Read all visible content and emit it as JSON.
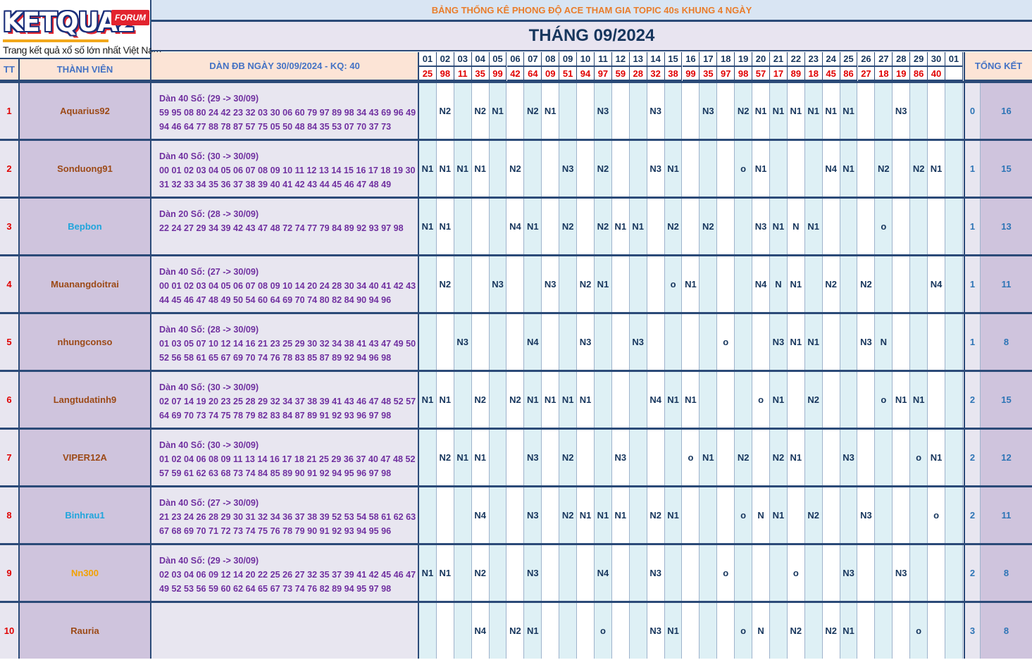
{
  "logo": {
    "brand": "KETQUA2",
    "badge": "FORUM",
    "tagline": "Trang kết quả xổ số lớn nhất Việt Nam"
  },
  "header": {
    "title": "BẢNG THỐNG KÊ PHONG ĐỘ ACE THAM GIA TOPIC 40s KHUNG 4 NGÀY",
    "month": "THÁNG 09/2024",
    "col_tt": "TT",
    "col_member": "THÀNH VIÊN",
    "col_dan": "DÀN ĐB NGÀY 30/09/2024 - KQ: 40",
    "col_summary": "TỔNG KẾT"
  },
  "days": [
    "01",
    "02",
    "03",
    "04",
    "05",
    "06",
    "07",
    "08",
    "09",
    "10",
    "11",
    "12",
    "13",
    "14",
    "15",
    "16",
    "17",
    "18",
    "19",
    "20",
    "21",
    "22",
    "23",
    "24",
    "25",
    "26",
    "27",
    "28",
    "29",
    "30",
    "01"
  ],
  "results": [
    "25",
    "98",
    "11",
    "35",
    "99",
    "42",
    "64",
    "09",
    "51",
    "94",
    "97",
    "59",
    "28",
    "32",
    "38",
    "99",
    "35",
    "97",
    "98",
    "57",
    "17",
    "89",
    "18",
    "45",
    "86",
    "27",
    "18",
    "19",
    "86",
    "40",
    ""
  ],
  "colors": {
    "name_brown": "#9c4a17",
    "name_blue": "#1fa5dc",
    "name_orange": "#f2a200",
    "row_bg": "#e8e6f0",
    "day_bg": "#def0f5",
    "accent_border": "#2b4a78"
  },
  "members": [
    {
      "tt": "1",
      "name": "Aquarius92",
      "name_color": "brown",
      "dan": [
        "Dàn 40 Số: (29 -> 30/09)",
        "59 95 08 80 24 42 23 32 03 30 06 60 79 97 89 98 34 43 69 96 49",
        "94 46 64 77 88 78 87 57 75 05 50 48 84 35 53 07 70 37 73"
      ],
      "marks": [
        "",
        "N2",
        "",
        "N2",
        "N1",
        "",
        "N2",
        "N1",
        "",
        "",
        "N3",
        "",
        "",
        "N3",
        "",
        "",
        "N3",
        "",
        "N2",
        "N1",
        "N1",
        "N1",
        "N1",
        "N1",
        "N1",
        "",
        "",
        "N3",
        "",
        "",
        ""
      ],
      "s1": "0",
      "s2": "16"
    },
    {
      "tt": "2",
      "name": "Sonduong91",
      "name_color": "brown",
      "dan": [
        "Dàn 40 Số: (30 -> 30/09)",
        "00 01 02 03 04 05 06 07 08 09 10 11 12 13 14 15 16 17 18 19 30",
        "31 32 33 34 35 36 37 38 39 40 41 42 43 44 45 46 47 48 49"
      ],
      "marks": [
        "N1",
        "N1",
        "N1",
        "N1",
        "",
        "N2",
        "",
        "",
        "N3",
        "",
        "N2",
        "",
        "",
        "N3",
        "N1",
        "",
        "",
        "",
        "o",
        "N1",
        "",
        "",
        "",
        "N4",
        "N1",
        "",
        "N2",
        "",
        "N2",
        "N1",
        ""
      ],
      "s1": "1",
      "s2": "15"
    },
    {
      "tt": "3",
      "name": "Bepbon",
      "name_color": "blue",
      "dan": [
        "Dàn 20 Số: (28 -> 30/09)",
        "22 24 27 29 34 39 42 43 47 48 72 74 77 79 84 89 92 93 97 98",
        ""
      ],
      "marks": [
        "N1",
        "N1",
        "",
        "",
        "",
        "N4",
        "N1",
        "",
        "N2",
        "",
        "N2",
        "N1",
        "N1",
        "",
        "N2",
        "",
        "N2",
        "",
        "",
        "N3",
        "N1",
        "N",
        "N1",
        "",
        "",
        "",
        "o",
        "",
        "",
        "",
        ""
      ],
      "s1": "1",
      "s2": "13"
    },
    {
      "tt": "4",
      "name": "Muanangdoitrai",
      "name_color": "brown",
      "dan": [
        "Dàn 40 Số: (27 -> 30/09)",
        "00 01 02 03 04 05 06 07 08 09 10 14 20 24 28 30 34 40 41 42 43",
        "44 45 46 47 48 49 50 54 60 64 69 70 74 80 82 84 90 94 96"
      ],
      "marks": [
        "",
        "N2",
        "",
        "",
        "N3",
        "",
        "",
        "N3",
        "",
        "N2",
        "N1",
        "",
        "",
        "",
        "o",
        "N1",
        "",
        "",
        "",
        "N4",
        "N",
        "N1",
        "",
        "N2",
        "",
        "N2",
        "",
        "",
        "",
        "N4",
        ""
      ],
      "s1": "1",
      "s2": "11"
    },
    {
      "tt": "5",
      "name": "nhungconso",
      "name_color": "brown",
      "dan": [
        "Dàn 40 Số: (28 -> 30/09)",
        "01 03 05 07 10 12 14 16 21 23 25 29 30 32 34 38 41 43 47 49 50",
        "52 56 58 61 65 67 69 70 74 76 78 83 85 87 89 92 94 96 98"
      ],
      "marks": [
        "",
        "",
        "N3",
        "",
        "",
        "",
        "N4",
        "",
        "",
        "N3",
        "",
        "",
        "N3",
        "",
        "",
        "",
        "",
        "o",
        "",
        "",
        "N3",
        "N1",
        "N1",
        "",
        "",
        "N3",
        "N",
        "",
        "",
        "",
        ""
      ],
      "s1": "1",
      "s2": "8"
    },
    {
      "tt": "6",
      "name": "Langtudatinh9",
      "name_color": "brown",
      "dan": [
        "Dàn 40 Số: (30 -> 30/09)",
        "02 07 14 19 20 23 25 28 29 32 34 37 38 39 41 43 46 47 48 52 57",
        "64 69 70 73 74 75 78 79 82 83 84 87 89 91 92 93 96 97 98"
      ],
      "marks": [
        "N1",
        "N1",
        "",
        "N2",
        "",
        "N2",
        "N1",
        "N1",
        "N1",
        "N1",
        "",
        "",
        "",
        "N4",
        "N1",
        "N1",
        "",
        "",
        "",
        "o",
        "N1",
        "",
        "N2",
        "",
        "",
        "",
        "o",
        "N1",
        "N1",
        "",
        ""
      ],
      "s1": "2",
      "s2": "15"
    },
    {
      "tt": "7",
      "name": "VIPER12A",
      "name_color": "brown",
      "dan": [
        "Dàn 40 Số: (30 -> 30/09)",
        "01 02 04 06 08 09 11 13 14 16 17 18 21 25 29 36 37 40 47 48 52",
        "57 59 61 62 63 68 73 74 84 85 89 90 91 92 94 95 96 97 98"
      ],
      "marks": [
        "",
        "N2",
        "N1",
        "N1",
        "",
        "",
        "N3",
        "",
        "N2",
        "",
        "",
        "N3",
        "",
        "",
        "",
        "o",
        "N1",
        "",
        "N2",
        "",
        "N2",
        "N1",
        "",
        "",
        "N3",
        "",
        "",
        "",
        "o",
        "N1",
        ""
      ],
      "s1": "2",
      "s2": "12"
    },
    {
      "tt": "8",
      "name": "Binhrau1",
      "name_color": "blue",
      "dan": [
        "Dàn 40 Số: (27 -> 30/09)",
        "21 23 24 26 28 29 30 31 32 34 36 37 38 39 52 53 54 58 61 62 63",
        "67 68 69 70 71 72 73 74 75 76 78 79 90 91 92 93 94 95 96"
      ],
      "marks": [
        "",
        "",
        "",
        "N4",
        "",
        "",
        "N3",
        "",
        "N2",
        "N1",
        "N1",
        "N1",
        "",
        "N2",
        "N1",
        "",
        "",
        "",
        "o",
        "N",
        "N1",
        "",
        "N2",
        "",
        "",
        "N3",
        "",
        "",
        "",
        "o",
        ""
      ],
      "s1": "2",
      "s2": "11"
    },
    {
      "tt": "9",
      "name": "Nn300",
      "name_color": "orange",
      "dan": [
        "Dàn 40 Số: (29 -> 30/09)",
        "02 03 04 06 09 12 14 20 22 25 26 27 32 35 37 39 41 42 45 46 47",
        "49 52 53 56 59 60 62 64 65 67 73 74 76 82 89 94 95 97 98"
      ],
      "marks": [
        "N1",
        "N1",
        "",
        "N2",
        "",
        "",
        "N3",
        "",
        "",
        "",
        "N4",
        "",
        "",
        "N3",
        "",
        "",
        "",
        "o",
        "",
        "",
        "",
        "o",
        "",
        "",
        "N3",
        "",
        "",
        "N3",
        "",
        "",
        ""
      ],
      "s1": "2",
      "s2": "8"
    },
    {
      "tt": "10",
      "name": "Rauria",
      "name_color": "brown",
      "dan": [
        "",
        "",
        ""
      ],
      "marks": [
        "",
        "",
        "",
        "N4",
        "",
        "N2",
        "N1",
        "",
        "",
        "",
        "o",
        "",
        "",
        "N3",
        "N1",
        "",
        "",
        "",
        "o",
        "N",
        "",
        "N2",
        "",
        "N2",
        "N1",
        "",
        "",
        "",
        "o",
        "",
        ""
      ],
      "s1": "3",
      "s2": "8"
    }
  ]
}
